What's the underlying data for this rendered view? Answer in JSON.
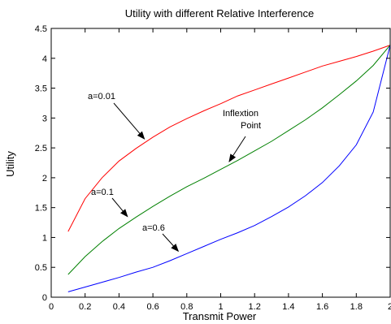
{
  "chart_data": {
    "type": "line",
    "title": "Utility with different Relative Interference",
    "xlabel": "Transmit Power",
    "ylabel": "Utility",
    "xlim": [
      0,
      2
    ],
    "ylim": [
      0,
      4.5
    ],
    "xticks": [
      0,
      0.2,
      0.4,
      0.6,
      0.8,
      1,
      1.2,
      1.4,
      1.6,
      1.8,
      2
    ],
    "xtick_labels": [
      "0",
      "0.2",
      "0.4",
      "0.6",
      "0.8",
      "1",
      "1.2",
      "1.4",
      "1.6",
      "1.8",
      "2"
    ],
    "yticks": [
      0,
      0.5,
      1,
      1.5,
      2,
      2.5,
      3,
      3.5,
      4,
      4.5
    ],
    "ytick_labels": [
      "0",
      "0.5",
      "1",
      "1.5",
      "2",
      "2.5",
      "3",
      "3.5",
      "4",
      "4.5"
    ],
    "grid": false,
    "legend": "none",
    "x": [
      0.1,
      0.2,
      0.3,
      0.4,
      0.5,
      0.6,
      0.7,
      0.8,
      0.9,
      1.0,
      1.1,
      1.2,
      1.3,
      1.4,
      1.5,
      1.6,
      1.7,
      1.8,
      1.9,
      2.0
    ],
    "series": [
      {
        "color": "#ff0000",
        "values": [
          1.1,
          1.65,
          2.0,
          2.28,
          2.49,
          2.68,
          2.85,
          2.99,
          3.12,
          3.24,
          3.37,
          3.47,
          3.57,
          3.67,
          3.77,
          3.87,
          3.95,
          4.03,
          4.12,
          4.22
        ]
      },
      {
        "color": "#008000",
        "values": [
          0.38,
          0.68,
          0.93,
          1.15,
          1.34,
          1.52,
          1.69,
          1.85,
          1.99,
          2.14,
          2.29,
          2.45,
          2.61,
          2.79,
          2.97,
          3.17,
          3.39,
          3.62,
          3.88,
          4.22
        ]
      },
      {
        "color": "#0000ff",
        "values": [
          0.09,
          0.17,
          0.25,
          0.33,
          0.42,
          0.5,
          0.61,
          0.73,
          0.85,
          0.97,
          1.08,
          1.2,
          1.35,
          1.51,
          1.7,
          1.92,
          2.2,
          2.55,
          3.1,
          4.22
        ]
      }
    ],
    "annotations": [
      {
        "text": "a=0.01",
        "arrow_to": [
          0.55,
          2.65
        ]
      },
      {
        "text": "Inflextion",
        "text2": "Point",
        "arrow_to": [
          1.05,
          2.27
        ]
      },
      {
        "text": "a=0.1",
        "arrow_to": [
          0.45,
          1.35
        ]
      },
      {
        "text": "a=0.6",
        "arrow_to": [
          0.75,
          0.77
        ]
      }
    ]
  }
}
